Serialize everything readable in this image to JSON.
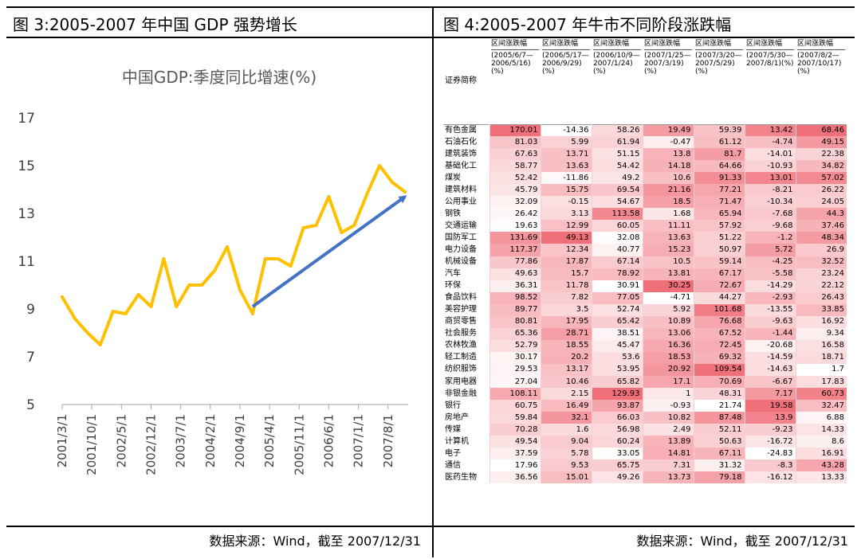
{
  "left_panel": {
    "figure_title": "图 3:2005-2007 年中国 GDP 强势增长",
    "source": "数据来源：Wind，截至 2007/12/31"
  },
  "right_panel": {
    "figure_title": "图 4:2005-2007 年牛市不同阶段涨跌幅",
    "source": "数据来源：Wind，截至 2007/12/31"
  },
  "chart_data": [
    {
      "type": "line",
      "title": "中国GDP:季度同比增速(%)",
      "xlabel": "",
      "ylabel": "",
      "ylim": [
        5,
        17
      ],
      "yticks": [
        5,
        7,
        9,
        11,
        13,
        15,
        17
      ],
      "x_tick_labels": [
        "2001/3/1",
        "2001/10/1",
        "2002/5/1",
        "2002/12/1",
        "2003/7/1",
        "2004/2/1",
        "2004/9/1",
        "2005/4/1",
        "2005/11/1",
        "2006/6/1",
        "2007/1/1",
        "2007/8/1"
      ],
      "grid": false,
      "legend": "none",
      "colors": {
        "line": "#FFC000",
        "arrow": "#4472C4",
        "axis": "#A6A6A6"
      },
      "x": [
        "2001-03",
        "2001-06",
        "2001-09",
        "2001-12",
        "2002-03",
        "2002-06",
        "2002-09",
        "2002-12",
        "2003-03",
        "2003-06",
        "2003-09",
        "2003-12",
        "2004-03",
        "2004-06",
        "2004-09",
        "2004-12",
        "2005-03",
        "2005-06",
        "2005-09",
        "2005-12",
        "2006-03",
        "2006-06",
        "2006-09",
        "2006-12",
        "2007-03",
        "2007-06",
        "2007-09",
        "2007-12"
      ],
      "series": [
        {
          "values": [
            9.5,
            8.6,
            8.0,
            7.5,
            8.9,
            8.8,
            9.6,
            9.1,
            11.1,
            9.1,
            10.0,
            10.0,
            10.6,
            11.6,
            9.8,
            8.8,
            11.1,
            11.1,
            10.8,
            12.4,
            12.5,
            13.7,
            12.2,
            12.5,
            13.8,
            15.0,
            14.3,
            13.9
          ]
        }
      ],
      "annotations": [
        {
          "type": "arrow",
          "from": [
            "2004-12",
            9.1
          ],
          "to": [
            "2007-12",
            13.7
          ]
        }
      ]
    },
    {
      "type": "table",
      "row_header": "证券简称",
      "columns": [
        {
          "label": "区间涨跌幅",
          "range": "(2005/6/7—2006/5/16)(%)"
        },
        {
          "label": "区间涨跌幅",
          "range": "(2006/5/17—2006/9/29)(%)"
        },
        {
          "label": "区间涨跌幅",
          "range": "(2006/10/9—2007/1/24)(%)"
        },
        {
          "label": "区间涨跌幅",
          "range": "(2007/1/25—2007/3/19)(%)"
        },
        {
          "label": "区间涨跌幅",
          "range": "(2007/3/20—2007/5/29)(%)"
        },
        {
          "label": "区间涨跌幅",
          "range": "(2007/5/30—2007/8/1)(%)"
        },
        {
          "label": "区间涨跌幅",
          "range": "(2007/8/2—2007/10/17)(%)"
        }
      ],
      "rows": [
        {
          "name": "有色金属",
          "values": [
            "170.01",
            "-14.36",
            "58.26",
            "19.49",
            "59.39",
            "13.42",
            "68.46"
          ]
        },
        {
          "name": "石油石化",
          "values": [
            "81.03",
            "5.99",
            "61.94",
            "-0.47",
            "61.12",
            "-4.74",
            "49.15"
          ]
        },
        {
          "name": "建筑装饰",
          "values": [
            "67.63",
            "13.71",
            "51.15",
            "13.8",
            "81.7",
            "-14.01",
            "22.38"
          ]
        },
        {
          "name": "基础化工",
          "values": [
            "58.77",
            "13.63",
            "54.42",
            "14.18",
            "64.66",
            "-10.93",
            "34.82"
          ]
        },
        {
          "name": "煤炭",
          "values": [
            "52.42",
            "-11.86",
            "49.2",
            "10.6",
            "91.33",
            "13.01",
            "57.02"
          ]
        },
        {
          "name": "建筑材料",
          "values": [
            "45.79",
            "15.75",
            "69.54",
            "21.16",
            "77.21",
            "-8.21",
            "26.22"
          ]
        },
        {
          "name": "公用事业",
          "values": [
            "32.09",
            "-0.15",
            "54.67",
            "18.5",
            "71.47",
            "-10.34",
            "24.05"
          ]
        },
        {
          "name": "钢铁",
          "values": [
            "26.42",
            "3.13",
            "113.58",
            "1.68",
            "65.94",
            "-7.68",
            "44.3"
          ]
        },
        {
          "name": "交通运输",
          "values": [
            "19.63",
            "12.99",
            "60.05",
            "11.11",
            "57.92",
            "-9.68",
            "37.46"
          ]
        },
        {
          "name": "国防军工",
          "values": [
            "131.69",
            "49.13",
            "32.08",
            "13.63",
            "51.22",
            "-1.2",
            "48.34"
          ]
        },
        {
          "name": "电力设备",
          "values": [
            "117.37",
            "12.34",
            "40.77",
            "15.23",
            "50.97",
            "5.72",
            "26.9"
          ]
        },
        {
          "name": "机械设备",
          "values": [
            "77.86",
            "17.87",
            "67.14",
            "10.5",
            "59.14",
            "-4.25",
            "32.52"
          ]
        },
        {
          "name": "汽车",
          "values": [
            "49.63",
            "15.7",
            "78.92",
            "13.81",
            "67.17",
            "-5.58",
            "23.24"
          ]
        },
        {
          "name": "环保",
          "values": [
            "36.31",
            "11.78",
            "30.91",
            "30.25",
            "72.67",
            "-14.29",
            "22.12"
          ]
        },
        {
          "name": "食品饮料",
          "values": [
            "98.52",
            "7.82",
            "77.05",
            "-4.71",
            "44.27",
            "-2.93",
            "26.43"
          ]
        },
        {
          "name": "美容护理",
          "values": [
            "89.77",
            "3.5",
            "52.74",
            "5.92",
            "101.68",
            "-13.55",
            "33.85"
          ]
        },
        {
          "name": "商贸零售",
          "values": [
            "80.81",
            "17.95",
            "65.42",
            "10.89",
            "76.68",
            "-9.63",
            "16.92"
          ]
        },
        {
          "name": "社会服务",
          "values": [
            "65.36",
            "28.71",
            "38.51",
            "13.06",
            "67.52",
            "-1.44",
            "9.34"
          ]
        },
        {
          "name": "农林牧渔",
          "values": [
            "52.79",
            "18.55",
            "45.47",
            "16.36",
            "72.45",
            "-20.68",
            "16.58"
          ]
        },
        {
          "name": "轻工制造",
          "values": [
            "30.17",
            "20.2",
            "53.6",
            "18.53",
            "69.32",
            "-14.59",
            "18.71"
          ]
        },
        {
          "name": "纺织服饰",
          "values": [
            "29.53",
            "13.17",
            "53.95",
            "20.92",
            "109.54",
            "-14.63",
            "1.7"
          ]
        },
        {
          "name": "家用电器",
          "values": [
            "27.04",
            "10.46",
            "65.82",
            "17.1",
            "70.69",
            "-6.67",
            "17.83"
          ]
        },
        {
          "name": "非银金融",
          "values": [
            "108.11",
            "2.15",
            "129.93",
            "1",
            "48.31",
            "7.17",
            "60.73"
          ]
        },
        {
          "name": "银行",
          "values": [
            "60.75",
            "16.49",
            "93.87",
            "-0.93",
            "21.74",
            "19.58",
            "32.47"
          ]
        },
        {
          "name": "房地产",
          "values": [
            "59.84",
            "32.1",
            "66.03",
            "10.82",
            "87.48",
            "13.9",
            "6.88"
          ]
        },
        {
          "name": "传媒",
          "values": [
            "70.28",
            "1.6",
            "56.98",
            "2.49",
            "52.11",
            "-9.23",
            "14.33"
          ]
        },
        {
          "name": "计算机",
          "values": [
            "49.54",
            "9.04",
            "60.24",
            "13.89",
            "50.63",
            "-16.72",
            "8.6"
          ]
        },
        {
          "name": "电子",
          "values": [
            "37.59",
            "5.78",
            "33.05",
            "14.81",
            "67.11",
            "-24.83",
            "16.91"
          ]
        },
        {
          "name": "通信",
          "values": [
            "17.96",
            "9.53",
            "65.75",
            "7.31",
            "31.32",
            "-8.3",
            "43.28"
          ]
        },
        {
          "name": "医药生物",
          "values": [
            "36.56",
            "15.01",
            "49.26",
            "13.73",
            "79.18",
            "-16.12",
            "13.33"
          ]
        }
      ],
      "colors": {
        "high": "#F0707A",
        "low": "#FFFFFF",
        "grid": "#F4D0D4"
      }
    }
  ]
}
